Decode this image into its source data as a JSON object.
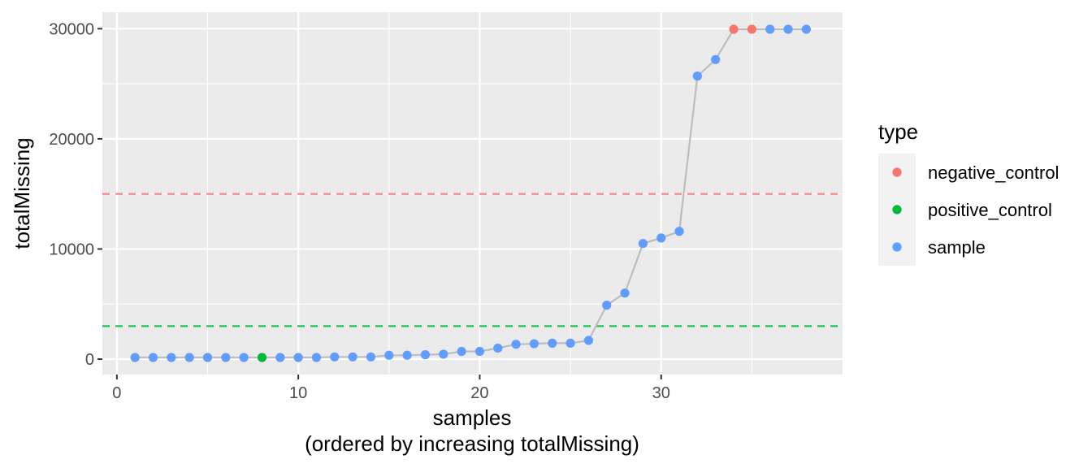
{
  "chart_data": {
    "type": "scatter",
    "xlabel": "samples",
    "xlabel_sub": "(ordered by increasing totalMissing)",
    "ylabel": "totalMissing",
    "xlim": [
      -0.8,
      40
    ],
    "ylim": [
      -1400,
      31500
    ],
    "x_ticks": [
      0,
      10,
      20,
      30
    ],
    "y_ticks": [
      0,
      10000,
      20000,
      30000
    ],
    "x_tick_labels": [
      "0",
      "10",
      "20",
      "30"
    ],
    "y_tick_labels": [
      "0",
      "10000",
      "20000",
      "30000"
    ],
    "grid": true,
    "background": "#ebebeb",
    "line_color": "#bdbdbd",
    "legend": {
      "title": "type",
      "placement": "right",
      "entries": [
        {
          "key": "negative_control",
          "label": "negative_control",
          "color": "#f8766d"
        },
        {
          "key": "positive_control",
          "label": "positive_control",
          "color": "#00ba38"
        },
        {
          "key": "sample",
          "label": "sample",
          "color": "#619cff"
        }
      ]
    },
    "hlines": [
      {
        "y": 15000,
        "color": "#f8766d",
        "style": "dashed"
      },
      {
        "y": 3000,
        "color": "#00ba38",
        "style": "dashed"
      }
    ],
    "points": [
      {
        "x": 1,
        "y": 150,
        "type": "sample"
      },
      {
        "x": 2,
        "y": 150,
        "type": "sample"
      },
      {
        "x": 3,
        "y": 150,
        "type": "sample"
      },
      {
        "x": 4,
        "y": 150,
        "type": "sample"
      },
      {
        "x": 5,
        "y": 150,
        "type": "sample"
      },
      {
        "x": 6,
        "y": 150,
        "type": "sample"
      },
      {
        "x": 7,
        "y": 150,
        "type": "sample"
      },
      {
        "x": 8,
        "y": 150,
        "type": "positive_control"
      },
      {
        "x": 9,
        "y": 150,
        "type": "sample"
      },
      {
        "x": 10,
        "y": 150,
        "type": "sample"
      },
      {
        "x": 11,
        "y": 150,
        "type": "sample"
      },
      {
        "x": 12,
        "y": 200,
        "type": "sample"
      },
      {
        "x": 13,
        "y": 200,
        "type": "sample"
      },
      {
        "x": 14,
        "y": 200,
        "type": "sample"
      },
      {
        "x": 15,
        "y": 350,
        "type": "sample"
      },
      {
        "x": 16,
        "y": 350,
        "type": "sample"
      },
      {
        "x": 17,
        "y": 400,
        "type": "sample"
      },
      {
        "x": 18,
        "y": 450,
        "type": "sample"
      },
      {
        "x": 19,
        "y": 700,
        "type": "sample"
      },
      {
        "x": 20,
        "y": 700,
        "type": "sample"
      },
      {
        "x": 21,
        "y": 1000,
        "type": "sample"
      },
      {
        "x": 22,
        "y": 1350,
        "type": "sample"
      },
      {
        "x": 23,
        "y": 1400,
        "type": "sample"
      },
      {
        "x": 24,
        "y": 1450,
        "type": "sample"
      },
      {
        "x": 25,
        "y": 1450,
        "type": "sample"
      },
      {
        "x": 26,
        "y": 1700,
        "type": "sample"
      },
      {
        "x": 27,
        "y": 4900,
        "type": "sample"
      },
      {
        "x": 28,
        "y": 6000,
        "type": "sample"
      },
      {
        "x": 29,
        "y": 10500,
        "type": "sample"
      },
      {
        "x": 30,
        "y": 11000,
        "type": "sample"
      },
      {
        "x": 31,
        "y": 11600,
        "type": "sample"
      },
      {
        "x": 32,
        "y": 25700,
        "type": "sample"
      },
      {
        "x": 33,
        "y": 27200,
        "type": "sample"
      },
      {
        "x": 34,
        "y": 29950,
        "type": "negative_control"
      },
      {
        "x": 35,
        "y": 29950,
        "type": "negative_control"
      },
      {
        "x": 36,
        "y": 29950,
        "type": "sample"
      },
      {
        "x": 37,
        "y": 29950,
        "type": "sample"
      },
      {
        "x": 38,
        "y": 29950,
        "type": "sample"
      }
    ]
  }
}
